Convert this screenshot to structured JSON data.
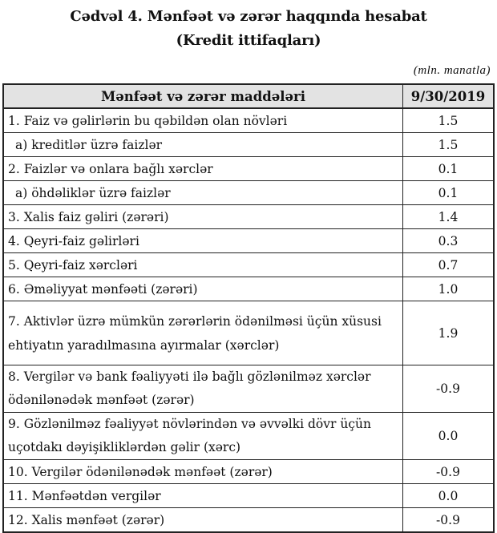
{
  "title": "Cədvəl 4. Mənfəət və zərər haqqında hesabat",
  "subtitle": "(Kredit ittifaqları)",
  "unit": "(mln. manatla)",
  "header": {
    "item": "Mənfəət və zərər maddələri",
    "date": "9/30/2019"
  },
  "rows": [
    {
      "label": "1. Faiz və gəlirlərin bu qəbildən olan növləri",
      "value": "1.5"
    },
    {
      "label": "a) kreditlər üzrə faizlər",
      "value": "1.5"
    },
    {
      "label": "2. Faizlər və onlara bağlı xərclər",
      "value": "0.1"
    },
    {
      "label": "a) öhdəliklər üzrə faizlər",
      "value": "0.1"
    },
    {
      "label": "3. Xalis faiz gəliri (zərəri)",
      "value": "1.4"
    },
    {
      "label": "4. Qeyri-faiz gəlirləri",
      "value": "0.3"
    },
    {
      "label": "5. Qeyri-faiz xərcləri",
      "value": "0.7"
    },
    {
      "label": "6. Əməliyyat mənfəəti (zərəri)",
      "value": "1.0"
    },
    {
      "label": "7. Aktivlər üzrə mümkün zərərlərin ödənilməsi üçün xüsusi ehtiyatın yaradılmasına ayırmalar (xərclər)",
      "value": "1.9"
    },
    {
      "label": "8. Vergilər və bank fəaliyyəti ilə bağlı gözlənilməz xərclər ödənilənədək mənfəət (zərər)",
      "value": "-0.9"
    },
    {
      "label": "9. Gözlənilməz fəaliyyət növlərindən və əvvəlki dövr üçün uçotdakı dəyişikliklərdən gəlir (xərc)",
      "value": "0.0"
    },
    {
      "label": "10. Vergilər ödənilənədək mənfəət (zərər)",
      "value": "-0.9"
    },
    {
      "label": "11. Mənfəətdən vergilər",
      "value": "0.0"
    },
    {
      "label": "12. Xalis mənfəət (zərər)",
      "value": "-0.9"
    }
  ]
}
